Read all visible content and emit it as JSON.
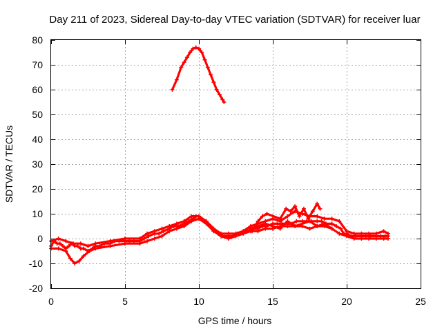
{
  "chart_data": {
    "type": "line",
    "title": "Day 211 of 2023, Sidereal Day-to-day VTEC variation (SDTVAR) for receiver luar",
    "xlabel": "GPS time / hours",
    "ylabel": "SDTVAR / TECUs",
    "xlim": [
      0,
      25
    ],
    "ylim": [
      -20,
      80
    ],
    "xticks": [
      0,
      5,
      10,
      15,
      20,
      25
    ],
    "yticks": [
      -20,
      -10,
      0,
      10,
      20,
      30,
      40,
      50,
      60,
      70,
      80
    ],
    "grid": true,
    "color": "#ff0000",
    "series": [
      {
        "name": "main-trace",
        "x": [
          0.0,
          0.2,
          0.4,
          0.6,
          0.8,
          1.0,
          1.2,
          1.4,
          1.6,
          1.8,
          2.0,
          2.2,
          2.5,
          2.8,
          3.0,
          3.3,
          3.6,
          4.0,
          4.3,
          4.6,
          5.0,
          5.3,
          5.6,
          6.0,
          6.3,
          6.6,
          7.0,
          7.3,
          7.6,
          8.0,
          8.3,
          8.6,
          9.0,
          9.3,
          9.6,
          9.8,
          10.0,
          10.2,
          10.5,
          10.8,
          11.0,
          11.3,
          11.6,
          12.0,
          12.3,
          12.6,
          13.0,
          13.3,
          13.6,
          14.0,
          14.3,
          14.6,
          15.0,
          15.3,
          15.6,
          16.0,
          16.3,
          16.6,
          17.0,
          17.3,
          17.6,
          18.0,
          18.3,
          18.6,
          19.0,
          19.3,
          19.6,
          19.8,
          20.0,
          20.3,
          20.6,
          21.0,
          21.3,
          21.6,
          22.0,
          22.3,
          22.6,
          22.8
        ],
        "y": [
          -3,
          -1,
          -2,
          -2,
          -3,
          -4,
          -3,
          -2,
          -3,
          -3,
          -4,
          -4,
          -5,
          -4,
          -3,
          -3,
          -2,
          -2,
          -1,
          -1,
          -1,
          -1,
          -1,
          -1,
          0,
          1,
          2,
          2,
          3,
          4,
          5,
          5,
          6,
          7,
          8,
          9,
          9,
          8,
          7,
          5,
          3,
          2,
          1,
          1,
          1,
          2,
          3,
          3,
          4,
          4,
          5,
          5,
          6,
          6,
          6,
          6,
          6,
          7,
          7,
          7,
          7,
          7,
          7,
          6,
          6,
          5,
          4,
          2,
          2,
          1,
          1,
          1,
          1,
          1,
          1,
          1,
          1,
          1
        ]
      },
      {
        "name": "upper-band",
        "x": [
          0.0,
          0.5,
          1.0,
          1.5,
          2.0,
          2.5,
          3.0,
          4.0,
          5.0,
          6.0,
          6.5,
          7.0,
          7.5,
          8.0,
          8.5,
          9.0,
          9.5,
          10.0,
          10.5,
          11.0,
          11.5,
          12.0,
          12.5,
          13.0,
          13.5,
          14.0,
          14.5,
          15.0,
          15.5,
          16.0,
          16.5,
          17.0,
          17.5,
          18.0,
          18.5,
          19.0,
          19.5,
          20.0,
          20.5,
          21.0,
          21.5,
          22.0,
          22.5,
          22.8
        ],
        "y": [
          -1,
          0,
          -1,
          -2,
          -2,
          -3,
          -2,
          -1,
          0,
          0,
          2,
          3,
          4,
          5,
          6,
          7,
          9,
          9,
          7,
          4,
          2,
          2,
          2,
          3,
          5,
          6,
          7,
          8,
          7,
          9,
          11,
          10,
          9,
          9,
          8,
          8,
          7,
          3,
          2,
          2,
          2,
          2,
          3,
          2
        ]
      },
      {
        "name": "lower-band",
        "x": [
          0.0,
          0.5,
          1.0,
          1.3,
          1.6,
          1.9,
          2.2,
          2.6,
          3.0,
          4.0,
          5.0,
          6.0,
          6.5,
          7.0,
          7.5,
          8.0,
          8.5,
          9.0,
          9.5,
          10.0,
          10.5,
          11.0,
          11.5,
          12.0,
          12.5,
          13.0,
          13.5,
          14.0,
          14.5,
          15.0,
          15.5,
          16.0,
          16.5,
          17.0,
          17.5,
          18.0,
          18.5,
          19.0,
          19.5,
          20.0,
          20.5,
          21.0,
          21.5,
          22.0,
          22.5,
          22.8
        ],
        "y": [
          -4,
          -4,
          -5,
          -8,
          -10,
          -9,
          -7,
          -5,
          -4,
          -3,
          -2,
          -2,
          -1,
          0,
          1,
          3,
          4,
          5,
          7,
          8,
          6,
          3,
          1,
          0,
          1,
          2,
          3,
          3,
          4,
          4,
          5,
          5,
          5,
          5,
          4,
          5,
          5,
          4,
          2,
          1,
          0,
          0,
          0,
          0,
          0,
          0
        ]
      },
      {
        "name": "spike-upper",
        "x": [
          13.6,
          14.0,
          14.3,
          14.6,
          15.5,
          15.9,
          16.2,
          16.5,
          16.8,
          17.1,
          17.4,
          17.7,
          18.0,
          18.2
        ],
        "y": [
          3,
          7,
          9,
          10,
          8,
          12,
          11,
          13,
          9,
          12,
          8,
          11,
          14,
          12
        ]
      },
      {
        "name": "spike-lower",
        "x": [
          13.5,
          14.0,
          14.5,
          15.0,
          15.5,
          16.0,
          16.5,
          17.0,
          17.5,
          18.0,
          18.5,
          19.0
        ],
        "y": [
          4,
          5,
          6,
          5,
          4,
          7,
          5,
          6,
          7,
          5,
          6,
          4
        ]
      },
      {
        "name": "daytime-peak",
        "x": [
          8.2,
          8.5,
          8.8,
          9.0,
          9.2,
          9.4,
          9.6,
          9.8,
          10.0,
          10.2,
          10.4,
          10.6,
          10.8,
          11.0,
          11.2,
          11.4,
          11.6,
          11.7
        ],
        "y": [
          60,
          64,
          69,
          71,
          73,
          75,
          76.5,
          77,
          76.5,
          75,
          72,
          69,
          66,
          63,
          60,
          58,
          56,
          55
        ]
      }
    ]
  }
}
